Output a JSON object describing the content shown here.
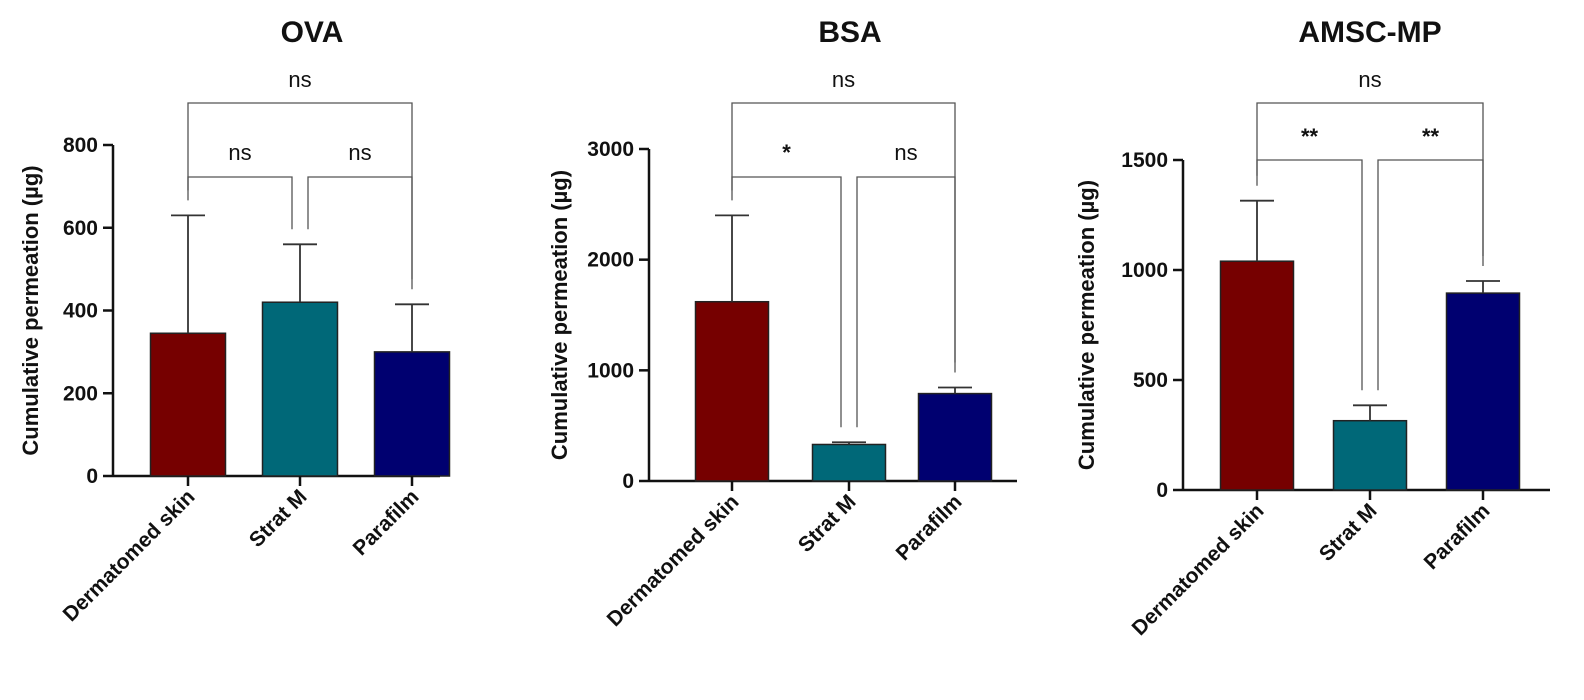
{
  "figure": {
    "ylabel": "Cumulative permeation (µg)"
  },
  "colors": {
    "Dermatomed skin": "#760000",
    "Strat M": "#006878",
    "Parafilm": "#000070"
  },
  "chart_data": [
    {
      "type": "bar",
      "title": "OVA",
      "ylabel": "Cumulative permeation (µg)",
      "categories": [
        "Dermatomed skin",
        "Strat M",
        "Parafilm"
      ],
      "values": [
        345,
        420,
        300
      ],
      "errors": [
        285,
        140,
        115
      ],
      "ylim": [
        0,
        800
      ],
      "yticks": [
        "0",
        "200",
        "400",
        "600",
        "800"
      ],
      "yticks_values": [
        0,
        200,
        400,
        600,
        800
      ],
      "significance": [
        {
          "from": 0,
          "to": 1,
          "label": "ns"
        },
        {
          "from": 1,
          "to": 2,
          "label": "ns"
        },
        {
          "from": 0,
          "to": 2,
          "label": "ns"
        }
      ]
    },
    {
      "type": "bar",
      "title": "BSA",
      "ylabel": "Cumulative permeation (µg)",
      "categories": [
        "Dermatomed skin",
        "Strat M",
        "Parafilm"
      ],
      "values": [
        1620,
        330,
        790
      ],
      "errors": [
        780,
        20,
        55
      ],
      "ylim": [
        0,
        3000
      ],
      "yticks": [
        "0",
        "1000",
        "2000",
        "3000"
      ],
      "yticks_values": [
        0,
        1000,
        2000,
        3000
      ],
      "significance": [
        {
          "from": 0,
          "to": 1,
          "label": "*"
        },
        {
          "from": 1,
          "to": 2,
          "label": "ns"
        },
        {
          "from": 0,
          "to": 2,
          "label": "ns"
        }
      ]
    },
    {
      "type": "bar",
      "title": "AMSC-MP",
      "ylabel": "Cumulative permeation (µg)",
      "categories": [
        "Dermatomed skin",
        "Strat M",
        "Parafilm"
      ],
      "values": [
        1040,
        315,
        895
      ],
      "errors": [
        275,
        70,
        55
      ],
      "ylim": [
        0,
        1500
      ],
      "yticks": [
        "0",
        "500",
        "1000",
        "1500"
      ],
      "yticks_values": [
        0,
        500,
        1000,
        1500
      ],
      "significance": [
        {
          "from": 0,
          "to": 1,
          "label": "**"
        },
        {
          "from": 1,
          "to": 2,
          "label": "**"
        },
        {
          "from": 0,
          "to": 2,
          "label": "ns"
        }
      ]
    }
  ]
}
